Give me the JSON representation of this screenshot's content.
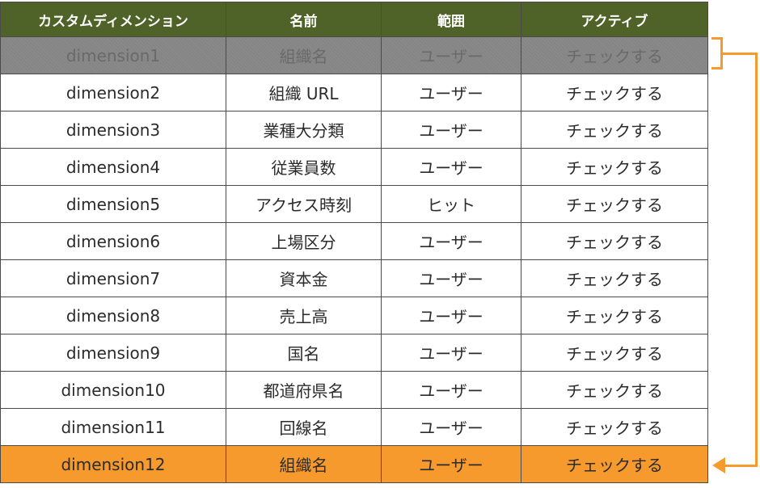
{
  "table": {
    "headers": [
      "カスタムディメンション",
      "名前",
      "範囲",
      "アクティブ"
    ],
    "rows": [
      {
        "dimension": "dimension1",
        "name": "組織名",
        "scope": "ユーザー",
        "active": "チェックする"
      },
      {
        "dimension": "dimension2",
        "name": "組織 URL",
        "scope": "ユーザー",
        "active": "チェックする"
      },
      {
        "dimension": "dimension3",
        "name": "業種大分類",
        "scope": "ユーザー",
        "active": "チェックする"
      },
      {
        "dimension": "dimension4",
        "name": "従業員数",
        "scope": "ユーザー",
        "active": "チェックする"
      },
      {
        "dimension": "dimension5",
        "name": "アクセス時刻",
        "scope": "ヒット",
        "active": "チェックする"
      },
      {
        "dimension": "dimension6",
        "name": "上場区分",
        "scope": "ユーザー",
        "active": "チェックする"
      },
      {
        "dimension": "dimension7",
        "name": "資本金",
        "scope": "ユーザー",
        "active": "チェックする"
      },
      {
        "dimension": "dimension8",
        "name": "売上高",
        "scope": "ユーザー",
        "active": "チェックする"
      },
      {
        "dimension": "dimension9",
        "name": "国名",
        "scope": "ユーザー",
        "active": "チェックする"
      },
      {
        "dimension": "dimension10",
        "name": "都道府県名",
        "scope": "ユーザー",
        "active": "チェックする"
      },
      {
        "dimension": "dimension11",
        "name": "回線名",
        "scope": "ユーザー",
        "active": "チェックする"
      },
      {
        "dimension": "dimension12",
        "name": "組織名",
        "scope": "ユーザー",
        "active": "チェックする"
      }
    ]
  },
  "colors": {
    "header_bg": "#4f6228",
    "header_text": "#ffffff",
    "disabled_row_bg": "#858585",
    "disabled_row_text": "#6a6a6a",
    "highlight_row_bg": "#f79a2e",
    "arrow": "#f79a2e",
    "border": "#4a4a4a"
  },
  "annotation": {
    "icon": "move-arrow-icon"
  }
}
